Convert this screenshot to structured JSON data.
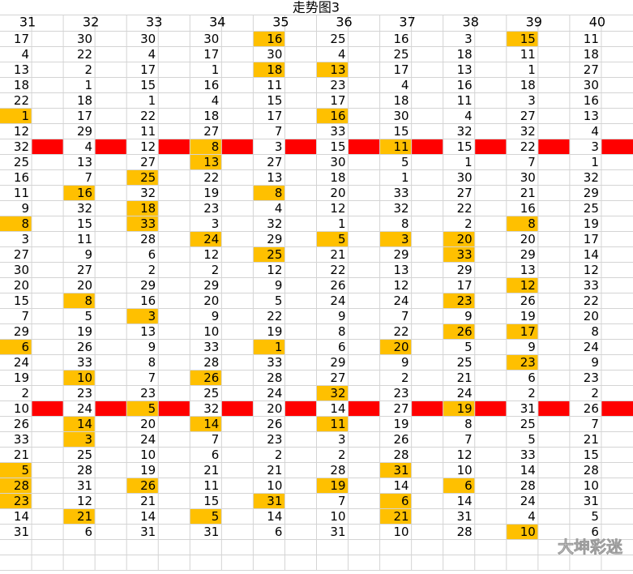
{
  "title": "走势图3",
  "headers": [
    "31",
    "32",
    "33",
    "34",
    "35",
    "36",
    "37",
    "38",
    "39",
    "40"
  ],
  "table": {
    "rows": [
      {
        "values": [
          17,
          30,
          30,
          30,
          16,
          25,
          16,
          3,
          15,
          11
        ],
        "highlighted": [
          4,
          8
        ]
      },
      {
        "values": [
          4,
          22,
          4,
          17,
          30,
          4,
          25,
          18,
          11,
          18
        ],
        "highlighted": []
      },
      {
        "values": [
          13,
          2,
          17,
          1,
          18,
          13,
          17,
          13,
          1,
          27
        ],
        "highlighted": [
          4,
          5
        ]
      },
      {
        "values": [
          18,
          1,
          15,
          16,
          11,
          23,
          4,
          16,
          18,
          30
        ],
        "highlighted": []
      },
      {
        "values": [
          22,
          18,
          1,
          4,
          15,
          17,
          18,
          11,
          3,
          16
        ],
        "highlighted": []
      },
      {
        "values": [
          1,
          17,
          22,
          18,
          17,
          16,
          30,
          4,
          27,
          13
        ],
        "highlighted": [
          0,
          5
        ]
      },
      {
        "values": [
          12,
          29,
          11,
          27,
          7,
          33,
          15,
          32,
          32,
          4
        ],
        "highlighted": []
      },
      {
        "values": [
          32,
          4,
          12,
          8,
          3,
          15,
          11,
          15,
          22,
          3
        ],
        "highlighted": [
          3,
          6
        ],
        "red": true
      },
      {
        "values": [
          25,
          13,
          27,
          13,
          27,
          30,
          5,
          1,
          7,
          1
        ],
        "highlighted": [
          3
        ]
      },
      {
        "values": [
          16,
          7,
          25,
          22,
          13,
          18,
          1,
          30,
          30,
          32
        ],
        "highlighted": [
          2
        ]
      },
      {
        "values": [
          11,
          16,
          32,
          19,
          8,
          20,
          33,
          27,
          21,
          29
        ],
        "highlighted": [
          1,
          4
        ]
      },
      {
        "values": [
          9,
          32,
          18,
          23,
          4,
          12,
          32,
          22,
          16,
          25
        ],
        "highlighted": [
          2
        ]
      },
      {
        "values": [
          8,
          15,
          33,
          3,
          32,
          1,
          8,
          2,
          8,
          19
        ],
        "highlighted": [
          0,
          2,
          8
        ]
      },
      {
        "values": [
          3,
          11,
          28,
          24,
          29,
          5,
          3,
          20,
          20,
          17
        ],
        "highlighted": [
          3,
          5,
          6,
          7
        ]
      },
      {
        "values": [
          27,
          9,
          6,
          12,
          25,
          21,
          29,
          33,
          29,
          14
        ],
        "highlighted": [
          4,
          7
        ]
      },
      {
        "values": [
          30,
          27,
          2,
          2,
          12,
          22,
          13,
          29,
          13,
          12
        ],
        "highlighted": []
      },
      {
        "values": [
          20,
          20,
          29,
          29,
          9,
          26,
          12,
          17,
          12,
          33
        ],
        "highlighted": [
          8
        ]
      },
      {
        "values": [
          15,
          8,
          16,
          20,
          5,
          24,
          24,
          23,
          26,
          22
        ],
        "highlighted": [
          1,
          7
        ]
      },
      {
        "values": [
          7,
          5,
          3,
          9,
          22,
          9,
          7,
          9,
          19,
          20
        ],
        "highlighted": [
          2
        ]
      },
      {
        "values": [
          29,
          19,
          13,
          10,
          19,
          8,
          22,
          26,
          17,
          8
        ],
        "highlighted": [
          7,
          8
        ]
      },
      {
        "values": [
          6,
          26,
          9,
          33,
          1,
          6,
          20,
          5,
          9,
          24
        ],
        "highlighted": [
          0,
          4,
          6
        ]
      },
      {
        "values": [
          24,
          33,
          8,
          28,
          33,
          29,
          9,
          25,
          23,
          9
        ],
        "highlighted": [
          8
        ]
      },
      {
        "values": [
          19,
          10,
          7,
          26,
          28,
          27,
          2,
          21,
          6,
          23
        ],
        "highlighted": [
          1,
          3
        ]
      },
      {
        "values": [
          2,
          23,
          23,
          25,
          24,
          32,
          23,
          24,
          2,
          2
        ],
        "highlighted": [
          5
        ]
      },
      {
        "values": [
          10,
          24,
          5,
          32,
          20,
          14,
          27,
          19,
          31,
          26
        ],
        "highlighted": [
          2,
          7
        ],
        "red": true
      },
      {
        "values": [
          26,
          14,
          20,
          14,
          26,
          11,
          19,
          8,
          25,
          7
        ],
        "highlighted": [
          1,
          3,
          5
        ]
      },
      {
        "values": [
          33,
          3,
          24,
          7,
          23,
          3,
          26,
          7,
          5,
          21
        ],
        "highlighted": [
          1
        ]
      },
      {
        "values": [
          21,
          25,
          10,
          6,
          2,
          2,
          28,
          12,
          33,
          15
        ],
        "highlighted": []
      },
      {
        "values": [
          5,
          28,
          19,
          21,
          21,
          28,
          31,
          10,
          14,
          28
        ],
        "highlighted": [
          0,
          6
        ]
      },
      {
        "values": [
          28,
          31,
          26,
          11,
          10,
          19,
          14,
          6,
          28,
          10
        ],
        "highlighted": [
          0,
          2,
          5,
          7
        ]
      },
      {
        "values": [
          23,
          12,
          21,
          15,
          31,
          7,
          6,
          14,
          24,
          31
        ],
        "highlighted": [
          0,
          4,
          6
        ]
      },
      {
        "values": [
          14,
          21,
          14,
          5,
          14,
          10,
          21,
          31,
          4,
          5
        ],
        "highlighted": [
          1,
          3,
          6
        ]
      },
      {
        "values": [
          31,
          6,
          31,
          31,
          6,
          31,
          10,
          28,
          10,
          6
        ],
        "highlighted": [
          8
        ]
      }
    ]
  },
  "watermark": "大坤彩迷"
}
